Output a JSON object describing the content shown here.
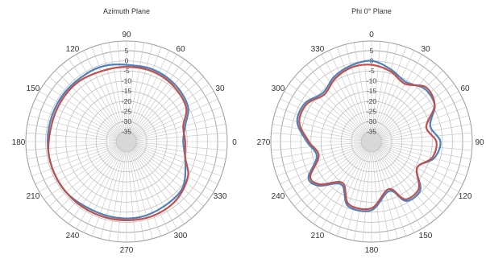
{
  "chart_data": [
    {
      "type": "polar-line",
      "title": "Azimuth Plane",
      "r_ticks": [
        5,
        0,
        -5,
        -10,
        -15,
        -20,
        -25,
        -30,
        -35
      ],
      "rlim": [
        -40,
        5
      ],
      "angle_labels": [
        {
          "angle": 0,
          "label": "90"
        },
        {
          "angle": 30,
          "label": "60"
        },
        {
          "angle": 60,
          "label": "30"
        },
        {
          "angle": 90,
          "label": "0"
        },
        {
          "angle": 120,
          "label": "330"
        },
        {
          "angle": 150,
          "label": "300"
        },
        {
          "angle": 180,
          "label": "270"
        },
        {
          "angle": 210,
          "label": "240"
        },
        {
          "angle": 240,
          "label": "210"
        },
        {
          "angle": 270,
          "label": "180"
        },
        {
          "angle": 300,
          "label": "150"
        },
        {
          "angle": 330,
          "label": "120"
        }
      ],
      "series": [
        {
          "color": "#4f81bd",
          "points": [
            [
              0,
              -2
            ],
            [
              20,
              -2
            ],
            [
              40,
              -3
            ],
            [
              60,
              -5
            ],
            [
              75,
              -10
            ],
            [
              90,
              -12
            ],
            [
              110,
              -9
            ],
            [
              130,
              -4
            ],
            [
              150,
              -3
            ],
            [
              170,
              -2
            ],
            [
              190,
              -2
            ],
            [
              210,
              -2
            ],
            [
              230,
              -1
            ],
            [
              250,
              -1
            ],
            [
              270,
              -1
            ],
            [
              290,
              -1
            ],
            [
              310,
              -1
            ],
            [
              330,
              -1
            ],
            [
              345,
              -1
            ]
          ]
        },
        {
          "color": "#c0504d",
          "points": [
            [
              0,
              -3
            ],
            [
              20,
              -3
            ],
            [
              40,
              -4
            ],
            [
              60,
              -6
            ],
            [
              75,
              -11
            ],
            [
              90,
              -11
            ],
            [
              105,
              -10
            ],
            [
              120,
              -5
            ],
            [
              140,
              -2
            ],
            [
              160,
              -1
            ],
            [
              180,
              -1
            ],
            [
              200,
              -1
            ],
            [
              220,
              -1
            ],
            [
              240,
              -1
            ],
            [
              260,
              -1
            ],
            [
              280,
              -2
            ],
            [
              300,
              -2
            ],
            [
              320,
              -2
            ],
            [
              340,
              -3
            ]
          ]
        }
      ]
    },
    {
      "type": "polar-line",
      "title": "Phi 0° Plane",
      "r_ticks": [
        5,
        0,
        -5,
        -10,
        -15,
        -20,
        -25,
        -30,
        -35
      ],
      "rlim": [
        -40,
        5
      ],
      "angle_labels": [
        {
          "angle": 0,
          "label": "0"
        },
        {
          "angle": 30,
          "label": "30"
        },
        {
          "angle": 60,
          "label": "60"
        },
        {
          "angle": 90,
          "label": "90"
        },
        {
          "angle": 120,
          "label": "120"
        },
        {
          "angle": 150,
          "label": "150"
        },
        {
          "angle": 180,
          "label": "180"
        },
        {
          "angle": 210,
          "label": "210"
        },
        {
          "angle": 240,
          "label": "240"
        },
        {
          "angle": 270,
          "label": "270"
        },
        {
          "angle": 300,
          "label": "300"
        },
        {
          "angle": 330,
          "label": "330"
        }
      ],
      "series": [
        {
          "color": "#4f81bd",
          "points": [
            [
              0,
              0
            ],
            [
              15,
              -3
            ],
            [
              30,
              -6
            ],
            [
              45,
              -3
            ],
            [
              60,
              -4
            ],
            [
              75,
              -10
            ],
            [
              90,
              -6
            ],
            [
              105,
              -8
            ],
            [
              120,
              -14
            ],
            [
              135,
              -6
            ],
            [
              150,
              -6
            ],
            [
              160,
              -14
            ],
            [
              180,
              -6
            ],
            [
              200,
              -6
            ],
            [
              215,
              -14
            ],
            [
              230,
              -6
            ],
            [
              240,
              -4
            ],
            [
              255,
              -12
            ],
            [
              270,
              -8
            ],
            [
              285,
              -2
            ],
            [
              300,
              -2
            ],
            [
              315,
              -6
            ],
            [
              330,
              -3
            ],
            [
              345,
              -1
            ]
          ]
        },
        {
          "color": "#c0504d",
          "points": [
            [
              0,
              -2
            ],
            [
              15,
              -4
            ],
            [
              30,
              -7
            ],
            [
              45,
              -2
            ],
            [
              60,
              -4
            ],
            [
              75,
              -12
            ],
            [
              90,
              -8
            ],
            [
              105,
              -9
            ],
            [
              120,
              -14
            ],
            [
              135,
              -7
            ],
            [
              150,
              -7
            ],
            [
              160,
              -15
            ],
            [
              180,
              -7
            ],
            [
              200,
              -7
            ],
            [
              215,
              -15
            ],
            [
              230,
              -7
            ],
            [
              240,
              -5
            ],
            [
              255,
              -13
            ],
            [
              270,
              -9
            ],
            [
              285,
              -3
            ],
            [
              300,
              -3
            ],
            [
              315,
              -7
            ],
            [
              330,
              -4
            ],
            [
              345,
              -2
            ]
          ]
        }
      ]
    }
  ]
}
